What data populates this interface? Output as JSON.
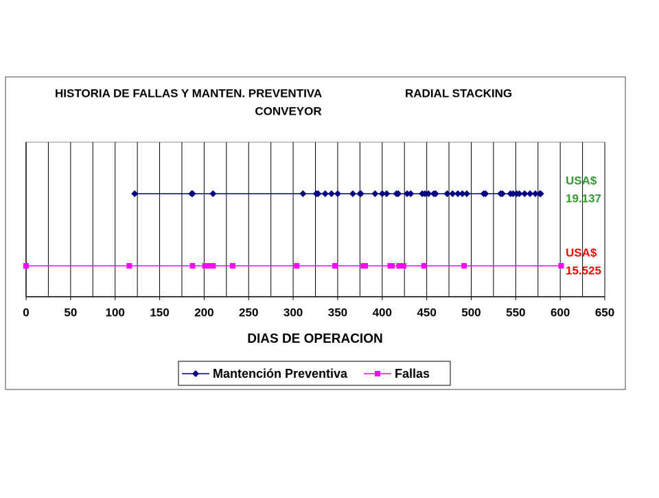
{
  "chart_data": {
    "type": "line",
    "title": [
      "HISTORIA DE FALLAS Y MANTEN.  PREVENTIVA",
      "RADIAL STACKING",
      "CONVEYOR"
    ],
    "x_label": "DIAS DE OPERACION",
    "xlim": [
      0,
      650
    ],
    "xticks": [
      0,
      50,
      100,
      150,
      200,
      250,
      300,
      350,
      400,
      450,
      500,
      550,
      600,
      650
    ],
    "x_gridlines": [
      0,
      25,
      50,
      75,
      100,
      125,
      150,
      175,
      200,
      225,
      250,
      275,
      300,
      325,
      350,
      375,
      400,
      425,
      450,
      475,
      500,
      525,
      550,
      575,
      600,
      625,
      650
    ],
    "ylim": [
      0,
      1.5
    ],
    "series": [
      {
        "name": "Mantención Preventiva",
        "color": "#000080",
        "marker": "diamond",
        "x": [
          122,
          186,
          187,
          210,
          311,
          326,
          328,
          336,
          343,
          350,
          367,
          375,
          376,
          392,
          400,
          405,
          416,
          418,
          428,
          432,
          445,
          448,
          452,
          458,
          460,
          473,
          479,
          485,
          490,
          495,
          514,
          516,
          533,
          535,
          544,
          547,
          551,
          554,
          560,
          566,
          572,
          577,
          578
        ],
        "values": [
          1,
          1,
          1,
          1,
          1,
          1,
          1,
          1,
          1,
          1,
          1,
          1,
          1,
          1,
          1,
          1,
          1,
          1,
          1,
          1,
          1,
          1,
          1,
          1,
          1,
          1,
          1,
          1,
          1,
          1,
          1,
          1,
          1,
          1,
          1,
          1,
          1,
          1,
          1,
          1,
          1,
          1,
          1
        ]
      },
      {
        "name": "Fallas",
        "color": "#ff00ff",
        "marker": "square",
        "x": [
          0,
          116,
          187,
          201,
          207,
          210,
          232,
          304,
          347,
          379,
          381,
          409,
          411,
          419,
          424,
          447,
          492,
          601
        ],
        "values": [
          0.3,
          0.3,
          0.3,
          0.3,
          0.3,
          0.3,
          0.3,
          0.3,
          0.3,
          0.3,
          0.3,
          0.3,
          0.3,
          0.3,
          0.3,
          0.3,
          0.3,
          0.3
        ]
      }
    ],
    "annotations": [
      {
        "lines": [
          "USA$",
          "19.137"
        ],
        "color": "#339933"
      },
      {
        "lines": [
          "USA$",
          "15.525"
        ],
        "color": "#ff0000"
      }
    ],
    "grid": true
  }
}
